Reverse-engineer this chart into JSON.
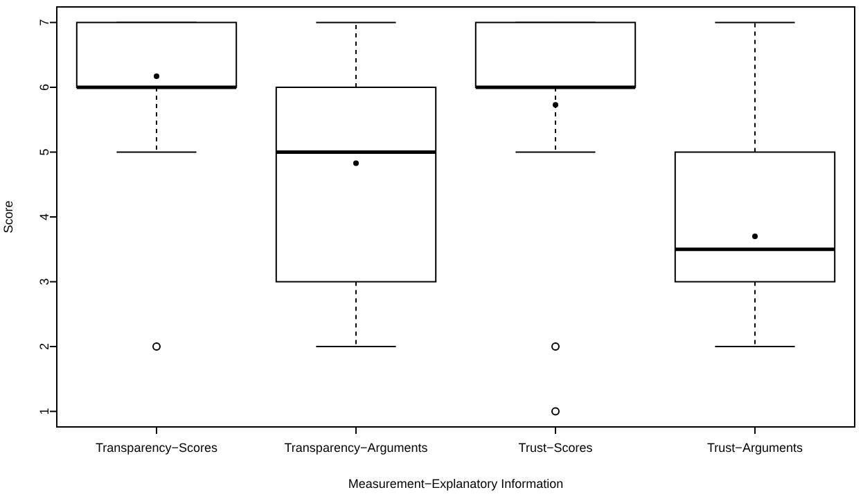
{
  "chart_data": {
    "type": "box",
    "xlabel": "Measurement−Explanatory Information",
    "ylabel": "Score",
    "categories": [
      "Transparency−Scores",
      "Transparency−Arguments",
      "Trust−Scores",
      "Trust−Arguments"
    ],
    "boxes": [
      {
        "low": 5,
        "q1": 6,
        "median": 6,
        "q3": 7,
        "high": 7,
        "mean": 6.17,
        "outliers": [
          2
        ]
      },
      {
        "low": 2,
        "q1": 3,
        "median": 5,
        "q3": 6,
        "high": 7,
        "mean": 4.83
      },
      {
        "low": 5,
        "q1": 6,
        "median": 6,
        "q3": 7,
        "high": 7,
        "mean": 5.73,
        "outliers": [
          2,
          1
        ]
      },
      {
        "low": 2,
        "q1": 3,
        "median": 3.5,
        "q3": 5,
        "high": 7,
        "mean": 3.7
      }
    ],
    "ylim": [
      0.76,
      7.24
    ],
    "yticks": [
      1,
      2,
      3,
      4,
      5,
      6,
      7
    ],
    "grid": false
  }
}
